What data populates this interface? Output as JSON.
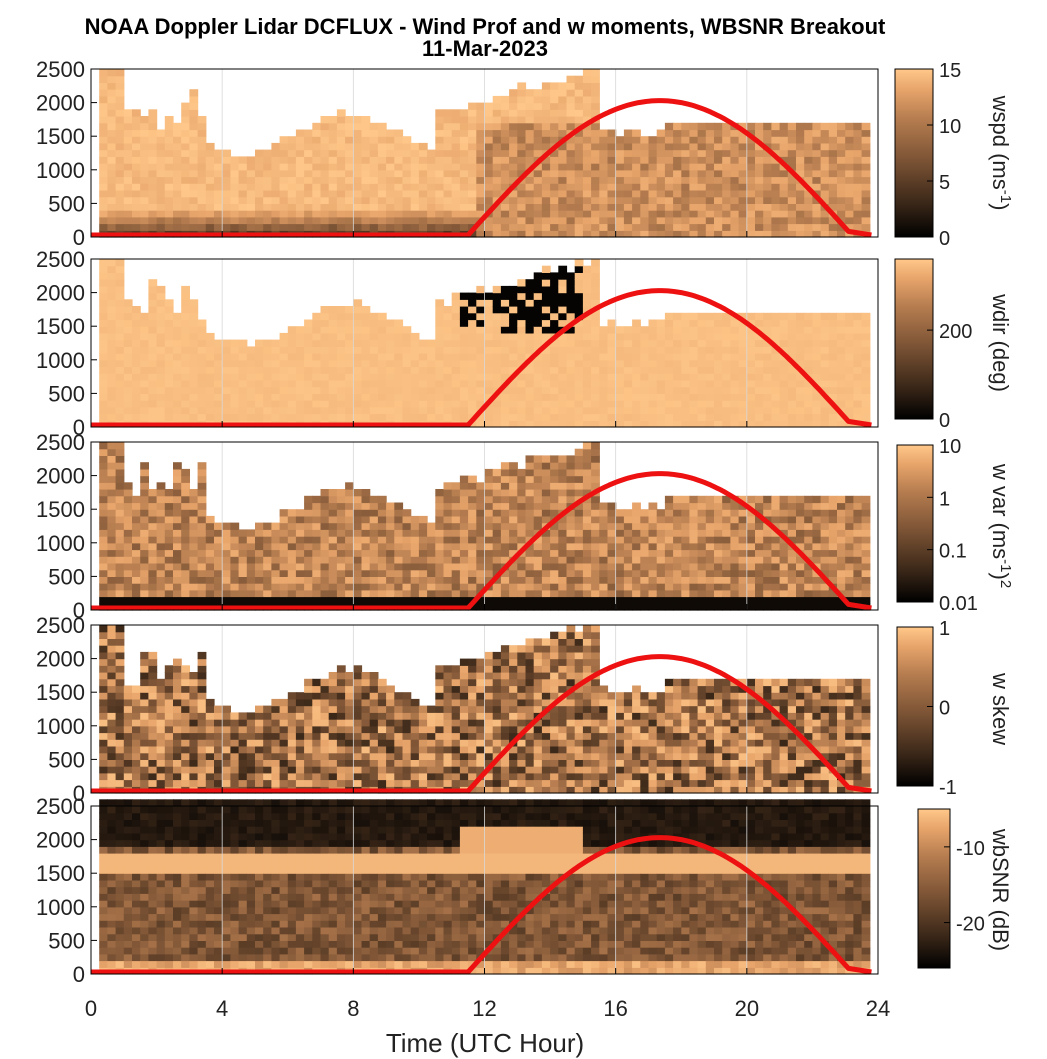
{
  "figure": {
    "title_line1": "NOAA Doppler Lidar DCFLUX - Wind Prof and w moments, WBSNR Breakout",
    "title_line2": "11-Mar-2023",
    "xlabel": "Time (UTC Hour)",
    "xticks": [
      "0",
      "4",
      "8",
      "12",
      "16",
      "20",
      "24"
    ],
    "yticks": [
      "0",
      "500",
      "1000",
      "1500",
      "2000",
      "2500"
    ]
  },
  "colors": {
    "colormap": [
      "#000000",
      "#3a2718",
      "#7a5234",
      "#b57c4f",
      "#e8a56b",
      "#ffc88a"
    ],
    "sun_curve": "#ee1111",
    "axes": "#000000",
    "grid": "#d8d8d8"
  },
  "chart_data": [
    {
      "type": "heatmap",
      "variable": "wspd",
      "xlim": [
        0,
        24
      ],
      "ylim": [
        0,
        2500
      ],
      "colorbar": {
        "label_main": "wspd (ms",
        "label_sup": "-1",
        "label_end": ")",
        "ticks": [
          "0",
          "5",
          "10",
          "15"
        ],
        "tick_values": [
          0,
          5,
          10,
          15
        ],
        "clim": [
          0,
          15
        ]
      },
      "sun_curve": {
        "start_hour": 11.5,
        "peak_hour": 17.3,
        "end_hour": 23.2,
        "peak": 2000
      }
    },
    {
      "type": "heatmap",
      "variable": "wdir",
      "xlim": [
        0,
        24
      ],
      "ylim": [
        0,
        2500
      ],
      "colorbar": {
        "label_main": "wdir (deg)",
        "label_sup": "",
        "label_end": "",
        "ticks": [
          "0",
          "200"
        ],
        "tick_values": [
          0,
          200
        ],
        "clim": [
          0,
          360
        ]
      },
      "sun_curve": {
        "start_hour": 11.5,
        "peak_hour": 17.3,
        "end_hour": 23.2,
        "peak": 2000
      }
    },
    {
      "type": "heatmap",
      "variable": "w var",
      "xlim": [
        0,
        24
      ],
      "ylim": [
        0,
        2500
      ],
      "colorbar": {
        "label_main": "w var (ms",
        "label_sup": "-1",
        "label_end": ")",
        "label_tail_sup": "2",
        "ticks": [
          "0.01",
          "0.1",
          "1",
          "10"
        ],
        "tick_values": [
          -2,
          -1,
          0,
          1
        ],
        "clim": [
          -2,
          1
        ],
        "scale": "log"
      },
      "sun_curve": {
        "start_hour": 11.5,
        "peak_hour": 17.3,
        "end_hour": 23.2,
        "peak": 2000
      }
    },
    {
      "type": "heatmap",
      "variable": "w skew",
      "xlim": [
        0,
        24
      ],
      "ylim": [
        0,
        2500
      ],
      "colorbar": {
        "label_main": "w skew",
        "label_sup": "",
        "label_end": "",
        "ticks": [
          "-1",
          "0",
          "1"
        ],
        "tick_values": [
          -1,
          0,
          1
        ],
        "clim": [
          -1,
          1
        ]
      },
      "sun_curve": {
        "start_hour": 11.5,
        "peak_hour": 17.3,
        "end_hour": 23.2,
        "peak": 2000
      }
    },
    {
      "type": "heatmap",
      "variable": "wbSNR",
      "xlim": [
        0,
        24
      ],
      "ylim": [
        0,
        2500
      ],
      "colorbar": {
        "label_main": "wbSNR (dB)",
        "label_sup": "",
        "label_end": "",
        "ticks": [
          "-20",
          "-10"
        ],
        "tick_values": [
          -20,
          -10
        ],
        "clim": [
          -26,
          -5
        ]
      },
      "sun_curve": {
        "start_hour": 11.5,
        "peak_hour": 17.3,
        "end_hour": 23.2,
        "peak": 2000
      }
    }
  ]
}
